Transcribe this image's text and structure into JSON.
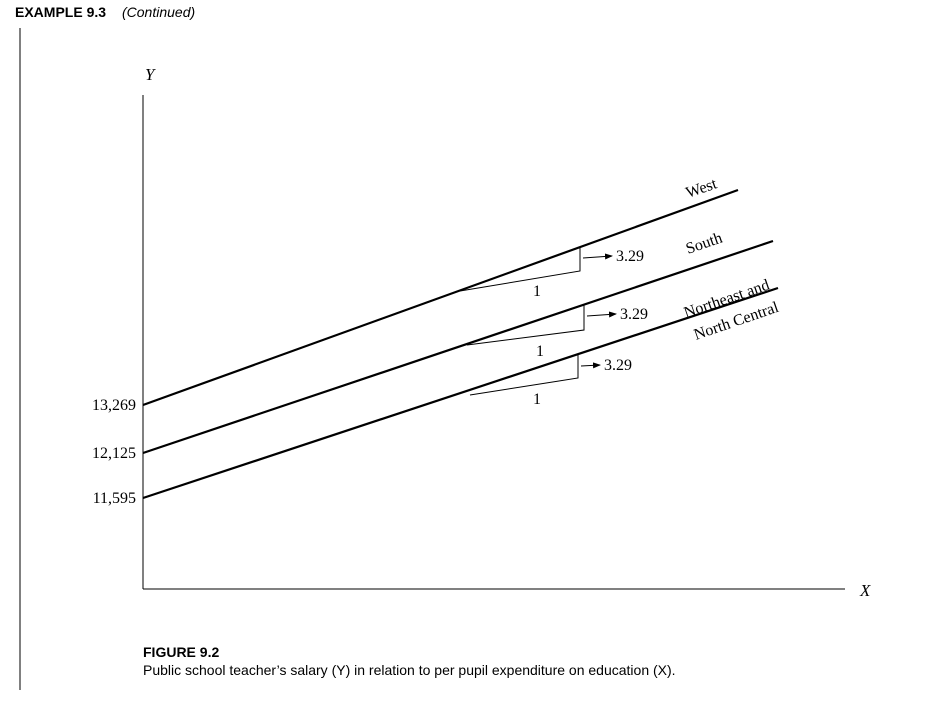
{
  "header": {
    "label": "EXAMPLE 9.3",
    "note": "(Continued)"
  },
  "figure": {
    "y_axis_label": "Y",
    "x_axis_label": "X",
    "intercepts": [
      "13,269",
      "12,125",
      "11,595"
    ],
    "lines": [
      {
        "label": "West",
        "slope": "3.29",
        "run": "1"
      },
      {
        "label": "South",
        "slope": "3.29",
        "run": "1"
      },
      {
        "label": "Northeast and",
        "label2": "North Central",
        "slope": "3.29",
        "run": "1"
      }
    ]
  },
  "caption": {
    "label": "FIGURE 9.2",
    "text": "Public school teacher’s salary (Y) in relation to per pupil expenditure on education (X)."
  }
}
